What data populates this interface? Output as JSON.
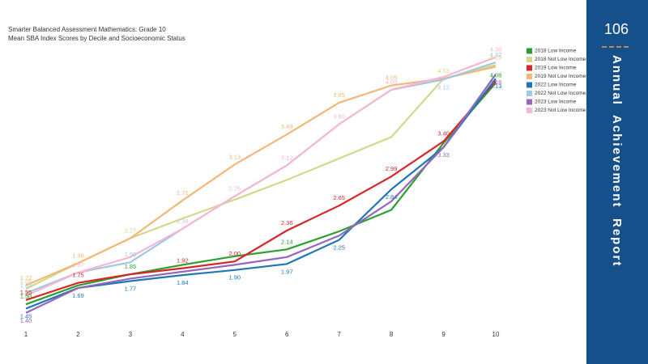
{
  "chart_data": {
    "type": "line",
    "title": "Smarter Balanced Assessment Mathematics: Grade 10",
    "subtitle": "Mean SBA Index Scores by Decile and Socioeconomic Status",
    "categories": [
      "1",
      "2",
      "3",
      "4",
      "5",
      "6",
      "7",
      "8",
      "9",
      "10"
    ],
    "ylim": [
      1.2,
      4.5
    ],
    "series": [
      {
        "name": "2018 Low Income",
        "color": "#2ca02c",
        "values": [
          1.5,
          1.72,
          1.85,
          1.96,
          2.06,
          2.14,
          2.35,
          2.6,
          3.38,
          4.08
        ],
        "value_labels": [
          "1.50",
          null,
          "1.85",
          null,
          null,
          "2.14",
          null,
          null,
          null,
          "4.08"
        ]
      },
      {
        "name": "2018 Not Low Income",
        "color": "#d4d88a",
        "values": [
          1.68,
          1.98,
          2.27,
          2.5,
          2.72,
          2.95,
          3.2,
          3.45,
          4.13,
          4.29
        ],
        "value_labels": [
          "1.68",
          null,
          "2.27",
          null,
          null,
          null,
          null,
          null,
          "4.13",
          "4.29"
        ]
      },
      {
        "name": "2019 Low Income",
        "color": "#d62728",
        "values": [
          1.55,
          1.75,
          1.85,
          1.92,
          2.0,
          2.36,
          2.65,
          2.99,
          3.4,
          4.1
        ],
        "value_labels": [
          "1.55",
          "1.75",
          null,
          "1.92",
          "2.00",
          "2.36",
          "2.65",
          "2.99",
          "3.40",
          null
        ]
      },
      {
        "name": "2019 Not Low Income",
        "color": "#f3b878",
        "values": [
          1.72,
          1.98,
          2.27,
          2.71,
          3.13,
          3.48,
          3.85,
          4.05,
          4.13,
          4.27
        ],
        "value_labels": [
          "1.72",
          "1.98",
          null,
          "2.71",
          "3.13",
          "3.48",
          "3.85",
          "4.05",
          null,
          null
        ]
      },
      {
        "name": "2022 Low Income",
        "color": "#1f77b4",
        "values": [
          1.45,
          1.69,
          1.77,
          1.84,
          1.9,
          1.97,
          2.25,
          2.84,
          3.33,
          4.13
        ],
        "value_labels": [
          "1.45",
          "1.69",
          "1.77",
          "1.84",
          "1.90",
          "1.97",
          "2.25",
          "2.84",
          null,
          "4.13"
        ]
      },
      {
        "name": "2022 Not Low Income",
        "color": "#9ecae1",
        "values": [
          1.63,
          1.87,
          1.99,
          2.38,
          2.76,
          3.12,
          3.6,
          4.0,
          4.12,
          4.32
        ],
        "value_labels": [
          "1.63",
          null,
          "1.99",
          null,
          null,
          null,
          null,
          null,
          "4.12",
          "4.32"
        ]
      },
      {
        "name": "2023 Low Income",
        "color": "#9467bd",
        "values": [
          1.4,
          1.69,
          1.8,
          1.88,
          1.96,
          2.05,
          2.3,
          2.7,
          3.33,
          4.18
        ],
        "value_labels": [
          "1.40",
          null,
          null,
          null,
          null,
          null,
          null,
          null,
          "3.33",
          "4.18"
        ]
      },
      {
        "name": "2023 Not Low Income",
        "color": "#f7b6d2",
        "values": [
          1.6,
          1.87,
          2.05,
          2.38,
          2.76,
          3.12,
          3.6,
          4.0,
          4.15,
          4.38
        ],
        "value_labels": [
          null,
          "1.87",
          null,
          "2.38",
          "2.76",
          "3.12",
          "3.60",
          "4.00",
          null,
          "4.38"
        ]
      }
    ]
  },
  "sidebar": {
    "page_number": "106",
    "words": [
      "Annual",
      "Achievement",
      "Report"
    ]
  }
}
